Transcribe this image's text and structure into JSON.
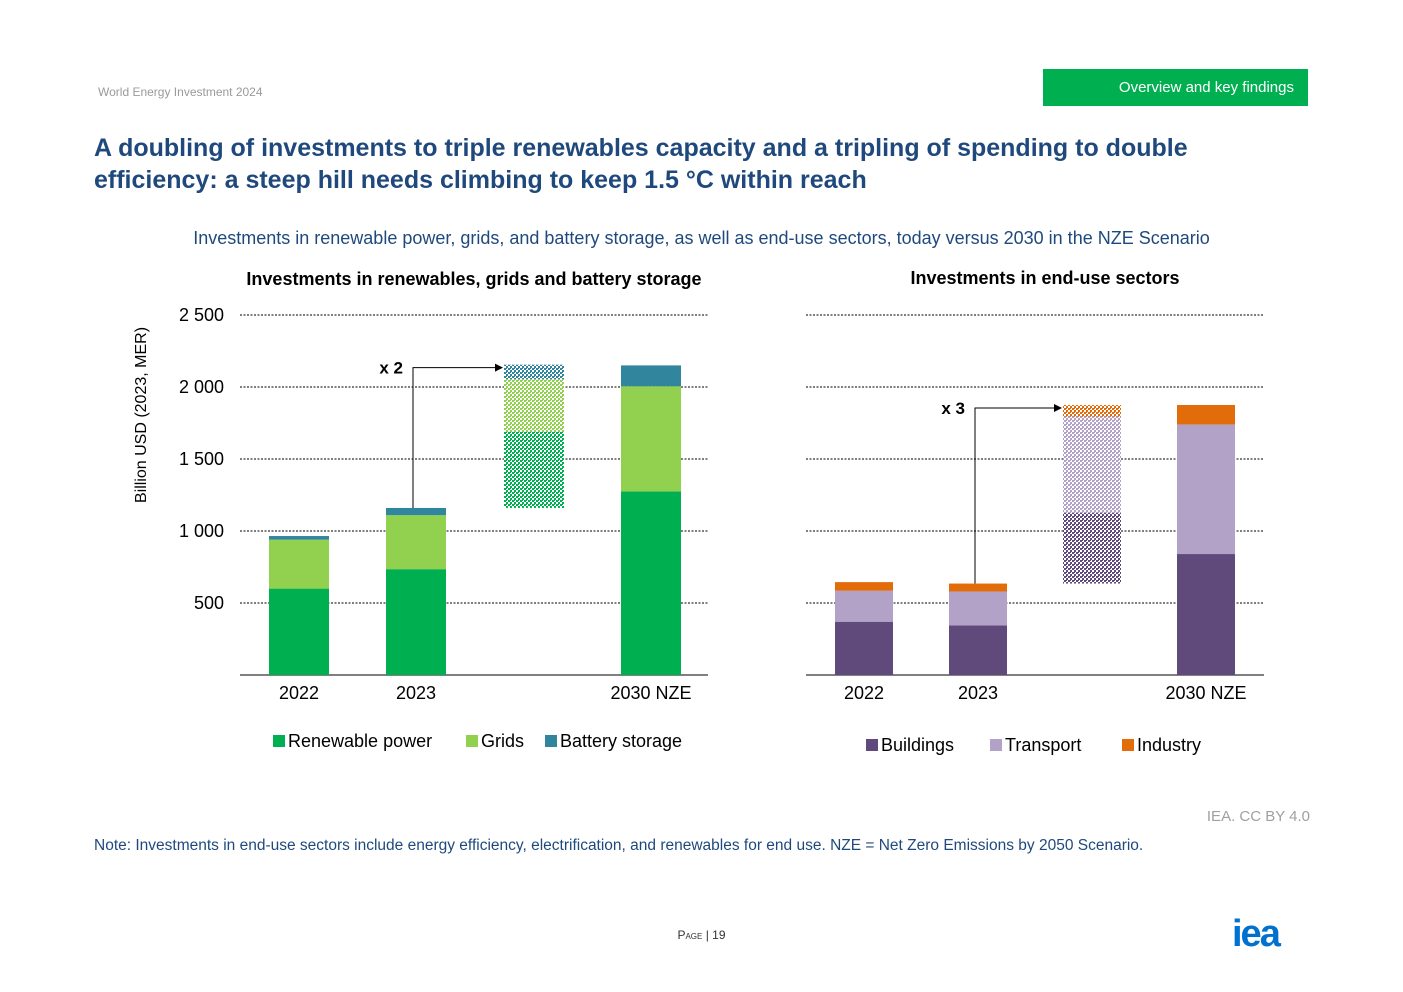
{
  "header": {
    "publication": "World Energy Investment 2024",
    "section": "Overview and key findings",
    "title_line1": "A doubling of investments to triple renewables capacity and a tripling of spending to double",
    "title_line2": "efficiency: a steep hill needs climbing to keep 1.5 °C within reach"
  },
  "figure_subtitle": "Investments in renewable power, grids, and battery storage, as well as end-use sectors, today versus 2030 in the NZE Scenario",
  "chart_data": [
    {
      "type": "bar",
      "stacked": true,
      "title": "Investments in renewables, grids and battery storage",
      "ylabel": "Billion USD (2023, MER)",
      "ylim": [
        0,
        2500
      ],
      "yticks": [
        500,
        1000,
        1500,
        2000,
        2500
      ],
      "ytick_labels": [
        "500",
        "1 000",
        "1 500",
        "2 000",
        "2 500"
      ],
      "categories": [
        "2022",
        "2023",
        "2030 NZE"
      ],
      "series": [
        {
          "name": "Renewable power",
          "color": "#00b050",
          "values": [
            600,
            735,
            1275
          ]
        },
        {
          "name": "Grids",
          "color": "#92d050",
          "values": [
            340,
            375,
            730
          ]
        },
        {
          "name": "Battery storage",
          "color": "#31859c",
          "values": [
            25,
            50,
            145
          ]
        }
      ],
      "bridge": {
        "label": "x 2",
        "base": 1160,
        "segments": [
          {
            "series": "Renewable power",
            "from": 1160,
            "to": 1690
          },
          {
            "series": "Grids",
            "from": 1690,
            "to": 2055
          },
          {
            "series": "Battery storage",
            "from": 2055,
            "to": 2155
          }
        ]
      },
      "grid": true,
      "legend_position": "bottom"
    },
    {
      "type": "bar",
      "stacked": true,
      "title": "Investments in end-use sectors",
      "ylim": [
        0,
        2500
      ],
      "categories": [
        "2022",
        "2023",
        "2030 NZE"
      ],
      "series": [
        {
          "name": "Buildings",
          "color": "#604a7b",
          "values": [
            370,
            345,
            840
          ]
        },
        {
          "name": "Transport",
          "color": "#b3a2c7",
          "values": [
            215,
            235,
            900
          ]
        },
        {
          "name": "Industry",
          "color": "#e36c0a",
          "values": [
            60,
            55,
            135
          ]
        }
      ],
      "bridge": {
        "label": "x 3",
        "base": 635,
        "segments": [
          {
            "series": "Buildings",
            "from": 635,
            "to": 1125
          },
          {
            "series": "Transport",
            "from": 1125,
            "to": 1795
          },
          {
            "series": "Industry",
            "from": 1795,
            "to": 1875
          }
        ]
      },
      "grid": true,
      "legend_position": "bottom"
    }
  ],
  "footer": {
    "credit": "IEA. CC BY 4.0",
    "note": "Note: Investments in end-use sectors include energy efficiency, electrification, and renewables for end use. NZE = Net Zero Emissions by 2050 Scenario.",
    "page_label": "Page",
    "page_number": "19",
    "logo_text": "iea"
  }
}
